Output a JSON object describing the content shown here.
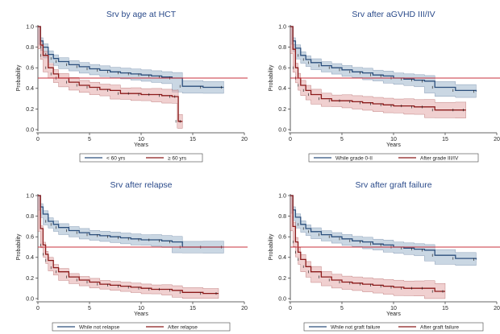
{
  "chart_data": [
    {
      "type": "line",
      "title": "Srv by age at HCT",
      "xlabel": "Years",
      "ylabel": "Probability",
      "xlim": [
        0,
        20
      ],
      "ylim": [
        0,
        1
      ],
      "xticks": [
        "0",
        "5",
        "10",
        "15",
        "20"
      ],
      "yticks": [
        "0.0",
        "0.2",
        "0.4",
        "0.6",
        "0.8",
        "1.0"
      ],
      "reference_line": 0.5,
      "reference_color": "#c8323c",
      "series": [
        {
          "name": "< 60 yrs",
          "color": "#2c4f7c",
          "band_color": "#9fb6cc",
          "x": [
            0,
            0.25,
            0.5,
            1,
            1.5,
            2,
            3,
            4,
            5,
            6,
            7,
            8,
            9,
            10,
            11,
            12,
            13,
            14,
            16,
            18
          ],
          "y": [
            1.0,
            0.86,
            0.8,
            0.73,
            0.69,
            0.66,
            0.63,
            0.61,
            0.59,
            0.575,
            0.56,
            0.55,
            0.54,
            0.53,
            0.52,
            0.51,
            0.5,
            0.42,
            0.41,
            0.41
          ],
          "band": 0.03
        },
        {
          "name": "≥ 60 yrs",
          "color": "#8b1a1a",
          "band_color": "#e3a9a9",
          "x": [
            0,
            0.25,
            0.5,
            1,
            1.5,
            2,
            3,
            4,
            5,
            6,
            7,
            8,
            9,
            10,
            11,
            12,
            13,
            13.5,
            13.6,
            14
          ],
          "y": [
            1.0,
            0.82,
            0.72,
            0.6,
            0.54,
            0.5,
            0.46,
            0.43,
            0.41,
            0.39,
            0.38,
            0.35,
            0.35,
            0.34,
            0.34,
            0.33,
            0.32,
            0.32,
            0.08,
            0.08
          ],
          "band": 0.035
        }
      ]
    },
    {
      "type": "line",
      "title": "Srv after aGVHD III/IV",
      "xlabel": "Years",
      "ylabel": "Probability",
      "xlim": [
        0,
        20
      ],
      "ylim": [
        0,
        1
      ],
      "xticks": [
        "0",
        "5",
        "10",
        "15",
        "20"
      ],
      "yticks": [
        "0.0",
        "0.2",
        "0.4",
        "0.6",
        "0.8",
        "1.0"
      ],
      "reference_line": 0.5,
      "reference_color": "#c8323c",
      "series": [
        {
          "name": "While grade 0-II",
          "color": "#2c4f7c",
          "band_color": "#9fb6cc",
          "x": [
            0,
            0.25,
            0.5,
            1,
            1.5,
            2,
            3,
            4,
            5,
            6,
            7,
            8,
            9,
            10,
            11,
            12,
            13,
            14,
            16,
            18
          ],
          "y": [
            1.0,
            0.86,
            0.79,
            0.72,
            0.68,
            0.65,
            0.62,
            0.6,
            0.58,
            0.56,
            0.55,
            0.53,
            0.52,
            0.5,
            0.49,
            0.48,
            0.47,
            0.41,
            0.38,
            0.37
          ],
          "band": 0.03
        },
        {
          "name": "After grade III/IV",
          "color": "#8b1a1a",
          "band_color": "#e3a9a9",
          "x": [
            0,
            0.25,
            0.5,
            0.75,
            1,
            1.5,
            2,
            3,
            4,
            5,
            6,
            7,
            8,
            9,
            10,
            11,
            12,
            13,
            14,
            16,
            17
          ],
          "y": [
            1.0,
            0.78,
            0.6,
            0.5,
            0.43,
            0.38,
            0.34,
            0.3,
            0.28,
            0.28,
            0.27,
            0.26,
            0.25,
            0.24,
            0.23,
            0.23,
            0.22,
            0.22,
            0.19,
            0.19,
            0.19
          ],
          "band": 0.04
        }
      ]
    },
    {
      "type": "line",
      "title": "Srv after relapse",
      "xlabel": "Years",
      "ylabel": "Probability",
      "xlim": [
        0,
        20
      ],
      "ylim": [
        0,
        1
      ],
      "xticks": [
        "0",
        "5",
        "10",
        "15",
        "20"
      ],
      "yticks": [
        "0.0",
        "0.2",
        "0.4",
        "0.6",
        "0.8",
        "1.0"
      ],
      "reference_line": 0.5,
      "reference_color": "#c8323c",
      "series": [
        {
          "name": "While not relapse",
          "color": "#2c4f7c",
          "band_color": "#9fb6cc",
          "x": [
            0,
            0.25,
            0.5,
            1,
            1.5,
            2,
            3,
            4,
            5,
            6,
            7,
            8,
            9,
            10,
            11,
            12,
            13,
            14,
            16,
            18
          ],
          "y": [
            1.0,
            0.89,
            0.82,
            0.75,
            0.72,
            0.69,
            0.66,
            0.64,
            0.62,
            0.61,
            0.6,
            0.59,
            0.58,
            0.57,
            0.57,
            0.56,
            0.55,
            0.5,
            0.5,
            0.5
          ],
          "band": 0.03
        },
        {
          "name": "After relapse",
          "color": "#8b1a1a",
          "band_color": "#e3a9a9",
          "x": [
            0,
            0.25,
            0.5,
            0.75,
            1,
            1.5,
            2,
            3,
            4,
            5,
            6,
            7,
            8,
            9,
            10,
            11,
            12,
            13,
            14,
            16,
            17.5
          ],
          "y": [
            1.0,
            0.68,
            0.52,
            0.43,
            0.37,
            0.3,
            0.26,
            0.21,
            0.18,
            0.16,
            0.14,
            0.13,
            0.12,
            0.11,
            0.1,
            0.09,
            0.09,
            0.08,
            0.06,
            0.05,
            0.05
          ],
          "band": 0.025
        }
      ]
    },
    {
      "type": "line",
      "title": "Srv after graft failure",
      "xlabel": "Years",
      "ylabel": "Probability",
      "xlim": [
        0,
        20
      ],
      "ylim": [
        0,
        1
      ],
      "xticks": [
        "0",
        "5",
        "10",
        "15",
        "20"
      ],
      "yticks": [
        "0.0",
        "0.2",
        "0.4",
        "0.6",
        "0.8",
        "1.0"
      ],
      "reference_line": 0.5,
      "reference_color": "#c8323c",
      "series": [
        {
          "name": "While not graft failure",
          "color": "#2c4f7c",
          "band_color": "#9fb6cc",
          "x": [
            0,
            0.25,
            0.5,
            1,
            1.5,
            2,
            3,
            4,
            5,
            6,
            7,
            8,
            9,
            10,
            11,
            12,
            13,
            14,
            16,
            18
          ],
          "y": [
            1.0,
            0.86,
            0.79,
            0.72,
            0.68,
            0.65,
            0.62,
            0.6,
            0.58,
            0.56,
            0.55,
            0.53,
            0.52,
            0.5,
            0.49,
            0.48,
            0.47,
            0.42,
            0.39,
            0.38
          ],
          "band": 0.03
        },
        {
          "name": "After graft failure",
          "color": "#8b1a1a",
          "band_color": "#e3a9a9",
          "x": [
            0,
            0.25,
            0.5,
            0.75,
            1,
            1.5,
            2,
            3,
            4,
            5,
            6,
            7,
            8,
            9,
            10,
            11,
            12,
            13,
            14,
            15
          ],
          "y": [
            1.0,
            0.7,
            0.55,
            0.45,
            0.38,
            0.31,
            0.26,
            0.21,
            0.18,
            0.16,
            0.15,
            0.14,
            0.13,
            0.12,
            0.11,
            0.1,
            0.1,
            0.1,
            0.07,
            0.07
          ],
          "band": 0.04
        }
      ]
    }
  ]
}
